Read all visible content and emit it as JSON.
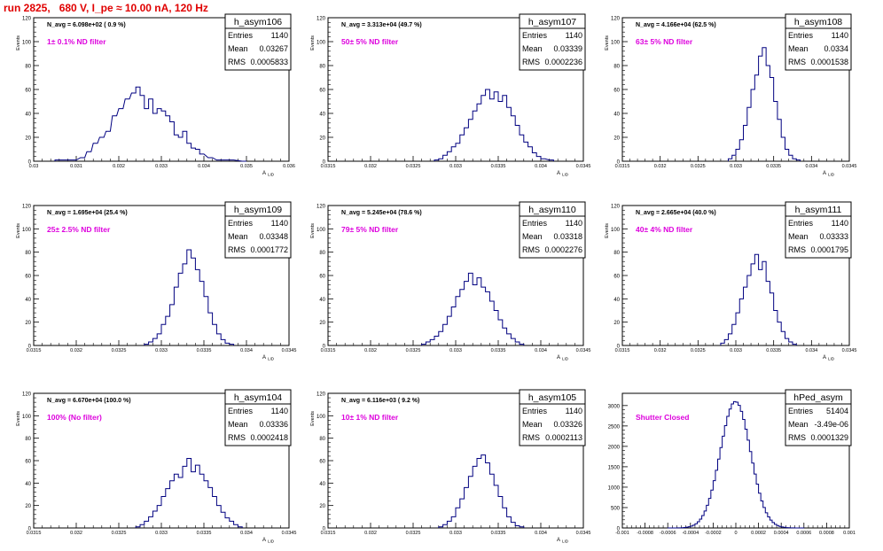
{
  "page": {
    "title": "run 2825,   680 V, I_pe ≈ 10.00 nA, 120 Hz"
  },
  "colors": {
    "hist": "#000080",
    "annotation": "#dd00dd",
    "title_text": "#e00000"
  },
  "chart_data": [
    {
      "type": "bar",
      "name": "h_asym106",
      "ylabel": "Events",
      "xlabel": "A_{LID}",
      "xlim": [
        0.03,
        0.036
      ],
      "ylim": [
        0,
        120
      ],
      "xticks": [
        0.03,
        0.031,
        0.032,
        0.033,
        0.034,
        0.035,
        0.036
      ],
      "xtick_labels": [
        "0.03",
        "0.031",
        "0.032",
        "0.033",
        "0.034",
        "0.035",
        "0.036"
      ],
      "yticks": [
        0,
        20,
        40,
        60,
        80,
        100,
        120
      ],
      "stats": {
        "Entries": "1140",
        "Mean": "0.03267",
        "RMS": "0.0005833"
      },
      "navg_label": "N_avg = 6.098e+02 ( 0.9 %)",
      "annotation": "1± 0.1% ND filter",
      "peak": 62,
      "bins": [
        [
          0.0305,
          1
        ],
        [
          0.0309,
          1
        ],
        [
          0.0311,
          3
        ],
        [
          0.03125,
          8
        ],
        [
          0.0314,
          15
        ],
        [
          0.03155,
          20
        ],
        [
          0.0317,
          25
        ],
        [
          0.03185,
          38
        ],
        [
          0.032,
          44
        ],
        [
          0.03215,
          52
        ],
        [
          0.0323,
          57
        ],
        [
          0.0324,
          62
        ],
        [
          0.0325,
          55
        ],
        [
          0.0326,
          44
        ],
        [
          0.0327,
          52
        ],
        [
          0.0328,
          40
        ],
        [
          0.0329,
          44
        ],
        [
          0.033,
          42
        ],
        [
          0.0331,
          38
        ],
        [
          0.0332,
          33
        ],
        [
          0.0333,
          22
        ],
        [
          0.0334,
          20
        ],
        [
          0.0335,
          25
        ],
        [
          0.0336,
          15
        ],
        [
          0.0337,
          11
        ],
        [
          0.0338,
          10
        ],
        [
          0.0339,
          6
        ],
        [
          0.0341,
          3
        ],
        [
          0.0343,
          1
        ],
        [
          0.0346,
          1
        ],
        [
          0.0349,
          0
        ]
      ]
    },
    {
      "type": "bar",
      "name": "h_asym107",
      "ylabel": "Events",
      "xlabel": "A_{LID}",
      "xlim": [
        0.0315,
        0.0345
      ],
      "ylim": [
        0,
        120
      ],
      "xticks": [
        0.0315,
        0.032,
        0.0325,
        0.033,
        0.0335,
        0.034,
        0.0345
      ],
      "xtick_labels": [
        "0.0315",
        "0.032",
        "0.0325",
        "0.033",
        "0.0335",
        "0.034",
        "0.0345"
      ],
      "yticks": [
        0,
        20,
        40,
        60,
        80,
        100,
        120
      ],
      "stats": {
        "Entries": "1140",
        "Mean": "0.03339",
        "RMS": "0.0002236"
      },
      "navg_label": "N_avg = 3.313e+04 (49.7 %)",
      "annotation": "50± 5% ND filter",
      "peak": 60,
      "bins": [
        [
          0.03275,
          1
        ],
        [
          0.0328,
          2
        ],
        [
          0.03285,
          5
        ],
        [
          0.0329,
          8
        ],
        [
          0.03295,
          12
        ],
        [
          0.033,
          15
        ],
        [
          0.03305,
          22
        ],
        [
          0.0331,
          28
        ],
        [
          0.03315,
          35
        ],
        [
          0.0332,
          42
        ],
        [
          0.03325,
          48
        ],
        [
          0.0333,
          55
        ],
        [
          0.03335,
          60
        ],
        [
          0.0334,
          52
        ],
        [
          0.03345,
          58
        ],
        [
          0.0335,
          50
        ],
        [
          0.03355,
          55
        ],
        [
          0.0336,
          45
        ],
        [
          0.03365,
          38
        ],
        [
          0.0337,
          30
        ],
        [
          0.03375,
          22
        ],
        [
          0.0338,
          16
        ],
        [
          0.03385,
          12
        ],
        [
          0.0339,
          7
        ],
        [
          0.03395,
          4
        ],
        [
          0.034,
          2
        ],
        [
          0.0341,
          1
        ]
      ]
    },
    {
      "type": "bar",
      "name": "h_asym108",
      "ylabel": "Events",
      "xlabel": "A_{LID}",
      "xlim": [
        0.0315,
        0.0345
      ],
      "ylim": [
        0,
        120
      ],
      "xticks": [
        0.0315,
        0.032,
        0.0325,
        0.033,
        0.0335,
        0.034,
        0.0345
      ],
      "xtick_labels": [
        "0.0315",
        "0.032",
        "0.0325",
        "0.033",
        "0.0335",
        "0.034",
        "0.0345"
      ],
      "yticks": [
        0,
        20,
        40,
        60,
        80,
        100,
        120
      ],
      "stats": {
        "Entries": "1140",
        "Mean": "0.0334",
        "RMS": "0.0001538"
      },
      "navg_label": "N_avg = 4.166e+04 (62.5 %)",
      "annotation": "63± 5% ND filter",
      "peak": 95,
      "bins": [
        [
          0.0329,
          2
        ],
        [
          0.03295,
          5
        ],
        [
          0.033,
          10
        ],
        [
          0.03305,
          18
        ],
        [
          0.0331,
          30
        ],
        [
          0.03315,
          45
        ],
        [
          0.0332,
          60
        ],
        [
          0.03325,
          72
        ],
        [
          0.0333,
          88
        ],
        [
          0.03335,
          95
        ],
        [
          0.0334,
          80
        ],
        [
          0.03345,
          70
        ],
        [
          0.0335,
          50
        ],
        [
          0.03355,
          35
        ],
        [
          0.0336,
          20
        ],
        [
          0.03365,
          10
        ],
        [
          0.0337,
          5
        ],
        [
          0.03375,
          2
        ],
        [
          0.0338,
          1
        ]
      ]
    },
    {
      "type": "bar",
      "name": "h_asym109",
      "ylabel": "Events",
      "xlabel": "A_{LID}",
      "xlim": [
        0.0315,
        0.0345
      ],
      "ylim": [
        0,
        120
      ],
      "xticks": [
        0.0315,
        0.032,
        0.0325,
        0.033,
        0.0335,
        0.034,
        0.0345
      ],
      "xtick_labels": [
        "0.0315",
        "0.032",
        "0.0325",
        "0.033",
        "0.0335",
        "0.034",
        "0.0345"
      ],
      "yticks": [
        0,
        20,
        40,
        60,
        80,
        100,
        120
      ],
      "stats": {
        "Entries": "1140",
        "Mean": "0.03348",
        "RMS": "0.0001772"
      },
      "navg_label": "N_avg = 1.695e+04 (25.4 %)",
      "annotation": "25± 2.5% ND filter",
      "peak": 82,
      "bins": [
        [
          0.0328,
          1
        ],
        [
          0.03285,
          3
        ],
        [
          0.0329,
          6
        ],
        [
          0.03295,
          10
        ],
        [
          0.033,
          18
        ],
        [
          0.03305,
          25
        ],
        [
          0.0331,
          35
        ],
        [
          0.03315,
          50
        ],
        [
          0.0332,
          62
        ],
        [
          0.03325,
          70
        ],
        [
          0.0333,
          82
        ],
        [
          0.03335,
          75
        ],
        [
          0.0334,
          65
        ],
        [
          0.03345,
          55
        ],
        [
          0.0335,
          42
        ],
        [
          0.03355,
          28
        ],
        [
          0.0336,
          18
        ],
        [
          0.03365,
          10
        ],
        [
          0.0337,
          5
        ],
        [
          0.03375,
          2
        ],
        [
          0.0338,
          1
        ]
      ]
    },
    {
      "type": "bar",
      "name": "h_asym110",
      "ylabel": "Events",
      "xlabel": "A_{LID}",
      "xlim": [
        0.0315,
        0.0345
      ],
      "ylim": [
        0,
        120
      ],
      "xticks": [
        0.0315,
        0.032,
        0.0325,
        0.033,
        0.0335,
        0.034,
        0.0345
      ],
      "xtick_labels": [
        "0.0315",
        "0.032",
        "0.0325",
        "0.033",
        "0.0335",
        "0.034",
        "0.0345"
      ],
      "yticks": [
        0,
        20,
        40,
        60,
        80,
        100,
        120
      ],
      "stats": {
        "Entries": "1140",
        "Mean": "0.03318",
        "RMS": "0.0002276"
      },
      "navg_label": "N_avg = 5.245e+04 (78.6 %)",
      "annotation": "79± 5% ND filter",
      "peak": 62,
      "bins": [
        [
          0.0326,
          1
        ],
        [
          0.03265,
          3
        ],
        [
          0.0327,
          5
        ],
        [
          0.03275,
          8
        ],
        [
          0.0328,
          12
        ],
        [
          0.03285,
          18
        ],
        [
          0.0329,
          25
        ],
        [
          0.03295,
          33
        ],
        [
          0.033,
          42
        ],
        [
          0.03305,
          48
        ],
        [
          0.0331,
          55
        ],
        [
          0.03315,
          62
        ],
        [
          0.0332,
          52
        ],
        [
          0.03325,
          58
        ],
        [
          0.0333,
          50
        ],
        [
          0.03335,
          46
        ],
        [
          0.0334,
          38
        ],
        [
          0.03345,
          30
        ],
        [
          0.0335,
          22
        ],
        [
          0.03355,
          15
        ],
        [
          0.0336,
          10
        ],
        [
          0.03365,
          6
        ],
        [
          0.0337,
          3
        ],
        [
          0.03375,
          1
        ]
      ]
    },
    {
      "type": "bar",
      "name": "h_asym111",
      "ylabel": "Events",
      "xlabel": "A_{LID}",
      "xlim": [
        0.0315,
        0.0345
      ],
      "ylim": [
        0,
        120
      ],
      "xticks": [
        0.0315,
        0.032,
        0.0325,
        0.033,
        0.0335,
        0.034,
        0.0345
      ],
      "xtick_labels": [
        "0.0315",
        "0.032",
        "0.0325",
        "0.033",
        "0.0335",
        "0.034",
        "0.0345"
      ],
      "yticks": [
        0,
        20,
        40,
        60,
        80,
        100,
        120
      ],
      "stats": {
        "Entries": "1140",
        "Mean": "0.03333",
        "RMS": "0.0001795"
      },
      "navg_label": "N_avg = 2.665e+04 (40.0 %)",
      "annotation": "40± 4% ND filter",
      "peak": 78,
      "bins": [
        [
          0.0328,
          2
        ],
        [
          0.03285,
          5
        ],
        [
          0.0329,
          10
        ],
        [
          0.03295,
          18
        ],
        [
          0.033,
          28
        ],
        [
          0.03305,
          40
        ],
        [
          0.0331,
          50
        ],
        [
          0.03315,
          60
        ],
        [
          0.0332,
          70
        ],
        [
          0.03325,
          78
        ],
        [
          0.0333,
          65
        ],
        [
          0.03335,
          72
        ],
        [
          0.0334,
          55
        ],
        [
          0.03345,
          45
        ],
        [
          0.0335,
          30
        ],
        [
          0.03355,
          20
        ],
        [
          0.0336,
          12
        ],
        [
          0.03365,
          6
        ],
        [
          0.0337,
          3
        ],
        [
          0.03375,
          1
        ]
      ]
    },
    {
      "type": "bar",
      "name": "h_asym104",
      "ylabel": "Events",
      "xlabel": "A_{LID}",
      "xlim": [
        0.0315,
        0.0345
      ],
      "ylim": [
        0,
        120
      ],
      "xticks": [
        0.0315,
        0.032,
        0.0325,
        0.033,
        0.0335,
        0.034,
        0.0345
      ],
      "xtick_labels": [
        "0.0315",
        "0.032",
        "0.0325",
        "0.033",
        "0.0335",
        "0.034",
        "0.0345"
      ],
      "yticks": [
        0,
        20,
        40,
        60,
        80,
        100,
        120
      ],
      "stats": {
        "Entries": "1140",
        "Mean": "0.03336",
        "RMS": "0.0002418"
      },
      "navg_label": "N_avg = 6.670e+04 (100.0 %)",
      "annotation": "100% (No filter)",
      "peak": 62,
      "bins": [
        [
          0.0327,
          1
        ],
        [
          0.03275,
          3
        ],
        [
          0.0328,
          6
        ],
        [
          0.03285,
          10
        ],
        [
          0.0329,
          15
        ],
        [
          0.03295,
          20
        ],
        [
          0.033,
          28
        ],
        [
          0.03305,
          35
        ],
        [
          0.0331,
          42
        ],
        [
          0.03315,
          48
        ],
        [
          0.0332,
          45
        ],
        [
          0.03325,
          55
        ],
        [
          0.0333,
          62
        ],
        [
          0.03335,
          50
        ],
        [
          0.0334,
          56
        ],
        [
          0.03345,
          48
        ],
        [
          0.0335,
          42
        ],
        [
          0.03355,
          36
        ],
        [
          0.0336,
          28
        ],
        [
          0.03365,
          20
        ],
        [
          0.0337,
          14
        ],
        [
          0.03375,
          9
        ],
        [
          0.0338,
          6
        ],
        [
          0.03385,
          3
        ],
        [
          0.0339,
          1
        ]
      ]
    },
    {
      "type": "bar",
      "name": "h_asym105",
      "ylabel": "Events",
      "xlabel": "A_{LID}",
      "xlim": [
        0.0315,
        0.0345
      ],
      "ylim": [
        0,
        120
      ],
      "xticks": [
        0.0315,
        0.032,
        0.0325,
        0.033,
        0.0335,
        0.034,
        0.0345
      ],
      "xtick_labels": [
        "0.0315",
        "0.032",
        "0.0325",
        "0.033",
        "0.0335",
        "0.034",
        "0.0345"
      ],
      "yticks": [
        0,
        20,
        40,
        60,
        80,
        100,
        120
      ],
      "stats": {
        "Entries": "1140",
        "Mean": "0.03326",
        "RMS": "0.0002113"
      },
      "navg_label": "N_avg = 6.116e+03 ( 9.2 %)",
      "annotation": "10± 1% ND filter",
      "peak": 65,
      "bins": [
        [
          0.0328,
          1
        ],
        [
          0.03285,
          3
        ],
        [
          0.0329,
          6
        ],
        [
          0.03295,
          10
        ],
        [
          0.033,
          18
        ],
        [
          0.03305,
          26
        ],
        [
          0.0331,
          36
        ],
        [
          0.03315,
          46
        ],
        [
          0.0332,
          55
        ],
        [
          0.03325,
          62
        ],
        [
          0.0333,
          65
        ],
        [
          0.03335,
          58
        ],
        [
          0.0334,
          48
        ],
        [
          0.03345,
          38
        ],
        [
          0.0335,
          28
        ],
        [
          0.03355,
          18
        ],
        [
          0.0336,
          10
        ],
        [
          0.03365,
          5
        ],
        [
          0.0337,
          2
        ],
        [
          0.03375,
          1
        ]
      ]
    },
    {
      "type": "bar",
      "name": "hPed_asym",
      "ylabel": "",
      "xlabel": "",
      "xlim": [
        -0.001,
        0.001
      ],
      "ylim": [
        0,
        3300
      ],
      "xticks": [
        -0.001,
        -0.0008,
        -0.0006,
        -0.0004,
        -0.0002,
        0,
        0.0002,
        0.0004,
        0.0006,
        0.0008,
        0.001
      ],
      "xtick_labels": [
        "-0.001",
        "-0.0008",
        "-0.0006",
        "-0.0004",
        "-0.0002",
        "0",
        "0.0002",
        "0.0004",
        "0.0006",
        "0.0008",
        "0.001"
      ],
      "yticks": [
        0,
        500,
        1000,
        1500,
        2000,
        2500,
        3000
      ],
      "stats": {
        "Entries": "51404",
        "Mean": "-3.49e-06",
        "RMS": "0.0001329"
      },
      "navg_label": "",
      "annotation": "Shutter Closed",
      "peak": 3100,
      "gaussian": {
        "mean": -3.5e-06,
        "sigma": 0.0001329,
        "amplitude": 3100
      }
    }
  ]
}
